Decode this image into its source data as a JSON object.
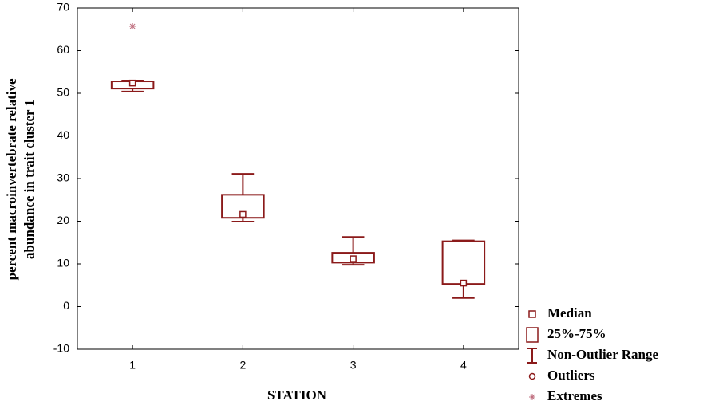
{
  "chart_data": {
    "type": "box",
    "x_label": "STATION",
    "y_label": [
      "percent macroinvertebrate relative",
      "abundance in trait cluster 1"
    ],
    "categories": [
      "1",
      "2",
      "3",
      "4"
    ],
    "color": "#8b1a1a",
    "extreme_color": "#c07080",
    "boxes": [
      {
        "min": 50.4,
        "q1": 51.1,
        "median": 52.4,
        "q3": 52.8,
        "max": 53
      },
      {
        "min": 19.9,
        "q1": 20.8,
        "median": 21.6,
        "q3": 26.2,
        "max": 31.1
      },
      {
        "min": 9.8,
        "q1": 10.3,
        "median": 11.2,
        "q3": 12.6,
        "max": 16.3
      },
      {
        "min": 2,
        "q1": 5.3,
        "median": 5.5,
        "q3": 15.3,
        "max": 15.5
      }
    ],
    "extremes": [
      65.7,
      null,
      null,
      null
    ],
    "ylim": [
      -10,
      70
    ],
    "yticks": [
      -10,
      0,
      10,
      20,
      30,
      40,
      50,
      60,
      70
    ],
    "legend": [
      "Median",
      "25%-75%",
      "Non-Outlier Range",
      "Outliers",
      "Extremes"
    ],
    "legend_position": "lower right outside"
  }
}
